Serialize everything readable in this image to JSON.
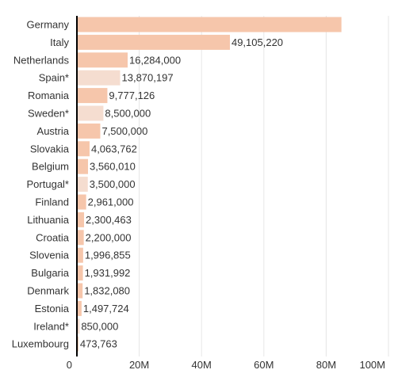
{
  "chart_data": {
    "type": "bar",
    "orientation": "horizontal",
    "categories": [
      "Germany",
      "Italy",
      "Netherlands",
      "Spain*",
      "Romania",
      "Sweden*",
      "Austria",
      "Slovakia",
      "Belgium",
      "Portugal*",
      "Finland",
      "Lithuania",
      "Croatia",
      "Slovenia",
      "Bulgaria",
      "Denmark",
      "Estonia",
      "Ireland*",
      "Luxembourg"
    ],
    "values": [
      84900000,
      49105220,
      16284000,
      13870197,
      9777126,
      8500000,
      7500000,
      4063762,
      3560010,
      3500000,
      2961000,
      2300463,
      2200000,
      1996855,
      1931992,
      1832080,
      1497724,
      850000,
      473763
    ],
    "value_labels": [
      "",
      "49,105,220",
      "16,284,000",
      "13,870,197",
      "9,777,126",
      "8,500,000",
      "7,500,000",
      "4,063,762",
      "3,560,010",
      "3,500,000",
      "2,961,000",
      "2,300,463",
      "2,200,000",
      "1,996,855",
      "1,931,992",
      "1,832,080",
      "1,497,724",
      "850,000",
      "473,763"
    ],
    "estimated": [
      false,
      false,
      false,
      true,
      false,
      true,
      false,
      false,
      false,
      true,
      false,
      false,
      false,
      false,
      false,
      false,
      false,
      true,
      false
    ],
    "xlim": [
      0,
      100000000
    ],
    "xticks": [
      0,
      20000000,
      40000000,
      60000000,
      80000000,
      100000000
    ],
    "xtick_labels": [
      "0",
      "20M",
      "40M",
      "60M",
      "80M",
      "100M"
    ],
    "title": "",
    "xlabel": "",
    "ylabel": "",
    "grid": "vertical",
    "legend": "none",
    "colors": {
      "bar": "#f6c6ab",
      "bar_estimated": "#f5ddd0",
      "grid": "#e6e6e6",
      "axis": "#000000",
      "text": "#333333"
    }
  }
}
